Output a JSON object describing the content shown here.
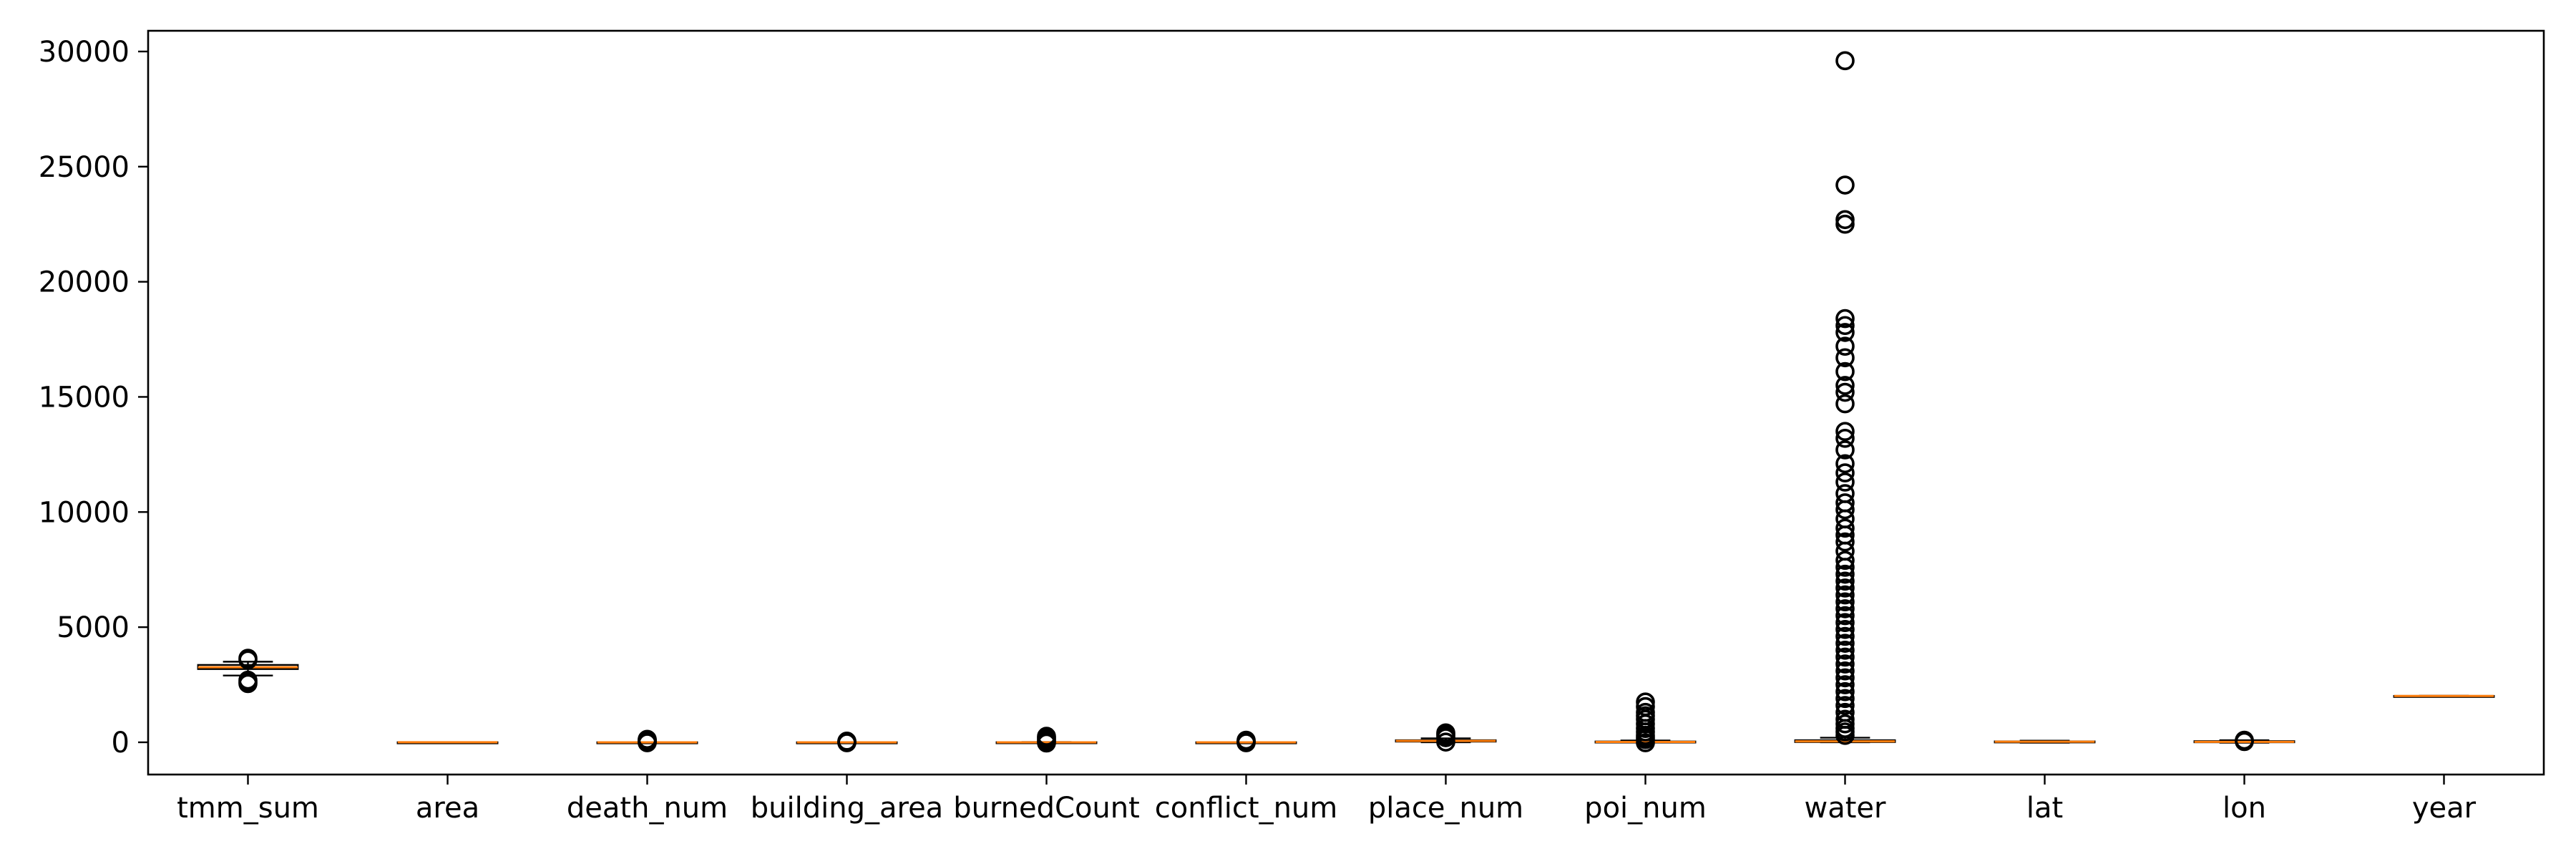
{
  "chart_data": {
    "type": "boxplot",
    "title": "",
    "xlabel": "",
    "ylabel": "",
    "ylim": [
      -1400,
      30900
    ],
    "grid": false,
    "legend": "none",
    "yticks": [
      0,
      5000,
      10000,
      15000,
      20000,
      25000,
      30000
    ],
    "ytick_labels": [
      "0",
      "5000",
      "10000",
      "15000",
      "20000",
      "25000",
      "30000"
    ],
    "categories": [
      "tmm_sum",
      "area",
      "death_num",
      "building_area",
      "burnedCount",
      "conflict_num",
      "place_num",
      "poi_num",
      "water",
      "lat",
      "lon",
      "year"
    ],
    "boxes": [
      {
        "whisker_low": 2900,
        "q1": 3180,
        "median": 3260,
        "q3": 3360,
        "whisker_high": 3500,
        "outliers": [
          2550,
          2620,
          2700,
          3580,
          3650
        ]
      },
      {
        "whisker_low": 0,
        "q1": 0,
        "median": 1,
        "q3": 2,
        "whisker_high": 4,
        "outliers": []
      },
      {
        "whisker_low": 0,
        "q1": 0,
        "median": 0,
        "q3": 2,
        "whisker_high": 5,
        "outliers": [
          -20,
          10,
          25,
          45,
          80,
          110,
          130
        ]
      },
      {
        "whisker_low": 0,
        "q1": 0,
        "median": 0,
        "q3": 1,
        "whisker_high": 3,
        "outliers": [
          -20,
          5,
          15,
          30,
          50
        ]
      },
      {
        "whisker_low": 0,
        "q1": 0,
        "median": 0,
        "q3": 5,
        "whisker_high": 12,
        "outliers": [
          -30,
          40,
          80,
          150,
          200,
          260
        ]
      },
      {
        "whisker_low": 0,
        "q1": 0,
        "median": 0,
        "q3": 2,
        "whisker_high": 5,
        "outliers": [
          -20,
          10,
          30,
          60,
          90
        ]
      },
      {
        "whisker_low": 0,
        "q1": 30,
        "median": 60,
        "q3": 90,
        "whisker_high": 170,
        "outliers": [
          10,
          200,
          280,
          350,
          410
        ]
      },
      {
        "whisker_low": 0,
        "q1": 5,
        "median": 15,
        "q3": 35,
        "whisker_high": 80,
        "outliers": [
          -20,
          120,
          200,
          300,
          450,
          600,
          800,
          1000,
          1150,
          1300,
          1550,
          1750
        ]
      },
      {
        "whisker_low": 0,
        "q1": 10,
        "median": 40,
        "q3": 90,
        "whisker_high": 200,
        "outliers": [
          29600,
          24200,
          22700,
          22500,
          18400,
          18100,
          17800,
          17200,
          16700,
          16100,
          15500,
          15200,
          14700,
          13500,
          13200,
          12700,
          12100,
          11700,
          11300,
          10800,
          10400,
          10100,
          9700,
          9300,
          9000,
          8700,
          8300,
          7900,
          7600,
          7300,
          7000,
          6700,
          6400,
          6100,
          5800,
          5500,
          5200,
          4900,
          4600,
          4300,
          4000,
          3700,
          3400,
          3100,
          2800,
          2500,
          2200,
          1900,
          1600,
          1300,
          1000,
          800,
          600,
          450,
          300
        ]
      },
      {
        "whisker_low": -20,
        "q1": 10,
        "median": 25,
        "q3": 40,
        "whisker_high": 70,
        "outliers": []
      },
      {
        "whisker_low": -20,
        "q1": 0,
        "median": 20,
        "q3": 50,
        "whisker_high": 90,
        "outliers": [
          30,
          60,
          90
        ]
      },
      {
        "whisker_low": 2000,
        "q1": 2005,
        "median": 2010,
        "q3": 2015,
        "whisker_high": 2020,
        "outliers": []
      }
    ],
    "colors": {
      "box": "#000000",
      "median": "#ff7f0e",
      "outlier": "#000000",
      "axes": "#000000"
    }
  }
}
